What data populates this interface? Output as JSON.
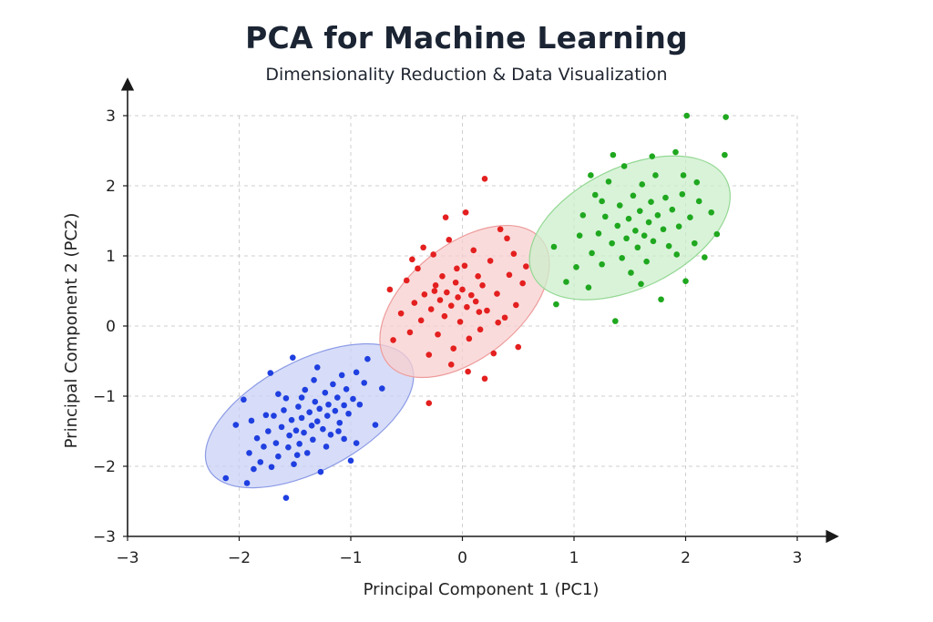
{
  "chart_data": {
    "type": "scatter",
    "title": "PCA for Machine Learning",
    "subtitle": "Dimensionality Reduction & Data Visualization",
    "xlabel": "Principal Component 1 (PC1)",
    "ylabel": "Principal Component 2 (PC2)",
    "xlim": [
      -3,
      3
    ],
    "ylim": [
      -3,
      3
    ],
    "xticks": [
      "-3",
      "-2",
      "-1",
      "0",
      "1",
      "2",
      "3"
    ],
    "yticks": [
      "-3",
      "-2",
      "-1",
      "0",
      "1",
      "2",
      "3"
    ],
    "grid": true,
    "legend": "none",
    "series": [
      {
        "color": "#1f3fe0",
        "ellipse": {
          "cx": -1.37,
          "cy": -1.28,
          "rx": 1.18,
          "ry": 0.62,
          "angle_deg": 40,
          "fill": "#c9d1f5",
          "stroke": "#8c9be6"
        },
        "points": [
          [
            -2.12,
            -2.17
          ],
          [
            -2.03,
            -1.41
          ],
          [
            -1.93,
            -2.24
          ],
          [
            -1.91,
            -1.81
          ],
          [
            -1.87,
            -2.04
          ],
          [
            -1.84,
            -1.6
          ],
          [
            -1.81,
            -1.94
          ],
          [
            -1.78,
            -1.72
          ],
          [
            -1.74,
            -1.5
          ],
          [
            -1.71,
            -2.01
          ],
          [
            -1.69,
            -1.28
          ],
          [
            -1.67,
            -1.67
          ],
          [
            -1.65,
            -1.86
          ],
          [
            -1.62,
            -1.44
          ],
          [
            -1.6,
            -1.2
          ],
          [
            -1.58,
            -2.45
          ],
          [
            -1.56,
            -1.73
          ],
          [
            -1.55,
            -1.56
          ],
          [
            -1.53,
            -1.34
          ],
          [
            -1.51,
            -1.97
          ],
          [
            -1.49,
            -1.49
          ],
          [
            -1.47,
            -1.15
          ],
          [
            -1.46,
            -1.68
          ],
          [
            -1.44,
            -1.31
          ],
          [
            -1.42,
            -1.52
          ],
          [
            -1.41,
            -0.91
          ],
          [
            -1.39,
            -1.81
          ],
          [
            -1.37,
            -1.23
          ],
          [
            -1.35,
            -1.42
          ],
          [
            -1.34,
            -1.62
          ],
          [
            -1.32,
            -1.08
          ],
          [
            -1.3,
            -1.36
          ],
          [
            -1.28,
            -1.18
          ],
          [
            -1.27,
            -2.08
          ],
          [
            -1.25,
            -1.47
          ],
          [
            -1.23,
            -0.95
          ],
          [
            -1.21,
            -1.28
          ],
          [
            -1.2,
            -1.12
          ],
          [
            -1.18,
            -1.55
          ],
          [
            -1.16,
            -0.83
          ],
          [
            -1.14,
            -1.21
          ],
          [
            -1.12,
            -1.02
          ],
          [
            -1.1,
            -1.38
          ],
          [
            -1.08,
            -0.7
          ],
          [
            -1.06,
            -1.13
          ],
          [
            -1.04,
            -0.9
          ],
          [
            -1.02,
            -1.25
          ],
          [
            -1.0,
            -1.92
          ],
          [
            -0.98,
            -1.04
          ],
          [
            -0.95,
            -0.66
          ],
          [
            -0.92,
            -1.12
          ],
          [
            -0.88,
            -0.81
          ],
          [
            -0.85,
            -0.47
          ],
          [
            -0.78,
            -1.41
          ],
          [
            -0.72,
            -0.89
          ],
          [
            -1.96,
            -1.05
          ],
          [
            -1.72,
            -0.67
          ],
          [
            -1.52,
            -0.45
          ],
          [
            -1.3,
            -0.59
          ],
          [
            -0.95,
            -1.67
          ],
          [
            -1.44,
            -1.02
          ],
          [
            -1.33,
            -0.77
          ],
          [
            -1.58,
            -1.03
          ],
          [
            -1.22,
            -1.72
          ],
          [
            -1.11,
            -1.5
          ],
          [
            -1.48,
            -1.84
          ],
          [
            -1.76,
            -1.27
          ],
          [
            -1.06,
            -1.61
          ],
          [
            -1.89,
            -1.35
          ],
          [
            -1.65,
            -0.97
          ]
        ]
      },
      {
        "color": "#e41f1f",
        "ellipse": {
          "cx": 0.02,
          "cy": 0.35,
          "rx": 1.12,
          "ry": 0.64,
          "angle_deg": 52,
          "fill": "#f8cfcf",
          "stroke": "#ee9c9c"
        },
        "points": [
          [
            -0.65,
            0.52
          ],
          [
            -0.62,
            -0.2
          ],
          [
            -0.55,
            0.18
          ],
          [
            -0.5,
            0.65
          ],
          [
            -0.47,
            -0.09
          ],
          [
            -0.43,
            0.33
          ],
          [
            -0.4,
            0.82
          ],
          [
            -0.37,
            0.08
          ],
          [
            -0.34,
            0.45
          ],
          [
            -0.3,
            -0.41
          ],
          [
            -0.28,
            0.24
          ],
          [
            -0.26,
            1.02
          ],
          [
            -0.24,
            0.58
          ],
          [
            -0.22,
            -0.12
          ],
          [
            -0.2,
            0.37
          ],
          [
            -0.18,
            0.71
          ],
          [
            -0.16,
            0.14
          ],
          [
            -0.14,
            0.48
          ],
          [
            -0.12,
            1.23
          ],
          [
            -0.1,
            0.29
          ],
          [
            -0.08,
            -0.32
          ],
          [
            -0.06,
            0.62
          ],
          [
            -0.04,
            0.41
          ],
          [
            -0.02,
            0.06
          ],
          [
            0.0,
            0.52
          ],
          [
            0.02,
            0.86
          ],
          [
            0.04,
            0.27
          ],
          [
            0.06,
            -0.18
          ],
          [
            0.08,
            0.44
          ],
          [
            0.1,
            1.08
          ],
          [
            0.12,
            0.35
          ],
          [
            0.14,
            0.71
          ],
          [
            0.16,
            -0.05
          ],
          [
            0.18,
            0.58
          ],
          [
            0.2,
            2.1
          ],
          [
            0.22,
            0.22
          ],
          [
            0.25,
            0.93
          ],
          [
            0.28,
            -0.39
          ],
          [
            0.31,
            0.46
          ],
          [
            0.34,
            1.38
          ],
          [
            0.38,
            0.12
          ],
          [
            0.42,
            0.73
          ],
          [
            0.46,
            1.03
          ],
          [
            0.5,
            -0.3
          ],
          [
            0.54,
            0.61
          ],
          [
            0.57,
            0.85
          ],
          [
            -0.3,
            -1.1
          ],
          [
            0.2,
            -0.75
          ],
          [
            -0.15,
            1.55
          ],
          [
            -0.35,
            1.12
          ],
          [
            0.03,
            1.62
          ],
          [
            0.4,
            1.25
          ],
          [
            0.05,
            -0.65
          ],
          [
            -0.05,
            0.82
          ],
          [
            0.15,
            0.2
          ],
          [
            -0.25,
            0.5
          ],
          [
            0.32,
            0.05
          ],
          [
            -0.45,
            0.95
          ],
          [
            0.48,
            0.3
          ],
          [
            -0.1,
            -0.55
          ]
        ]
      },
      {
        "color": "#1fa81f",
        "ellipse": {
          "cx": 1.5,
          "cy": 1.4,
          "rx": 1.1,
          "ry": 0.68,
          "angle_deg": 38,
          "fill": "#ccefcc",
          "stroke": "#94d894"
        },
        "points": [
          [
            0.82,
            1.13
          ],
          [
            0.84,
            0.31
          ],
          [
            0.93,
            0.63
          ],
          [
            1.02,
            0.84
          ],
          [
            1.05,
            1.29
          ],
          [
            1.08,
            1.58
          ],
          [
            1.13,
            0.55
          ],
          [
            1.16,
            1.04
          ],
          [
            1.19,
            1.87
          ],
          [
            1.22,
            1.32
          ],
          [
            1.25,
            0.88
          ],
          [
            1.28,
            1.56
          ],
          [
            1.31,
            2.06
          ],
          [
            1.34,
            1.18
          ],
          [
            1.37,
            0.07
          ],
          [
            1.39,
            1.43
          ],
          [
            1.41,
            1.72
          ],
          [
            1.43,
            0.97
          ],
          [
            1.45,
            2.28
          ],
          [
            1.47,
            1.25
          ],
          [
            1.49,
            1.53
          ],
          [
            1.51,
            0.76
          ],
          [
            1.53,
            1.86
          ],
          [
            1.55,
            1.36
          ],
          [
            1.57,
            1.12
          ],
          [
            1.59,
            1.64
          ],
          [
            1.61,
            2.02
          ],
          [
            1.63,
            1.29
          ],
          [
            1.65,
            0.92
          ],
          [
            1.67,
            1.48
          ],
          [
            1.69,
            1.77
          ],
          [
            1.71,
            1.21
          ],
          [
            1.73,
            2.15
          ],
          [
            1.75,
            1.58
          ],
          [
            1.78,
            0.38
          ],
          [
            1.8,
            1.38
          ],
          [
            1.82,
            1.83
          ],
          [
            1.85,
            1.14
          ],
          [
            1.88,
            1.66
          ],
          [
            1.91,
            2.48
          ],
          [
            1.94,
            1.42
          ],
          [
            1.97,
            1.88
          ],
          [
            2.0,
            0.64
          ],
          [
            2.01,
            3.0
          ],
          [
            2.04,
            1.55
          ],
          [
            2.08,
            1.18
          ],
          [
            2.12,
            1.78
          ],
          [
            2.17,
            0.98
          ],
          [
            2.23,
            1.62
          ],
          [
            2.28,
            1.31
          ],
          [
            2.35,
            2.44
          ],
          [
            2.36,
            2.98
          ],
          [
            1.35,
            2.44
          ],
          [
            1.98,
            2.15
          ],
          [
            1.6,
            0.6
          ],
          [
            1.15,
            2.15
          ],
          [
            2.1,
            2.05
          ],
          [
            1.7,
            2.42
          ],
          [
            1.25,
            1.78
          ],
          [
            1.92,
            1.02
          ]
        ]
      }
    ]
  }
}
